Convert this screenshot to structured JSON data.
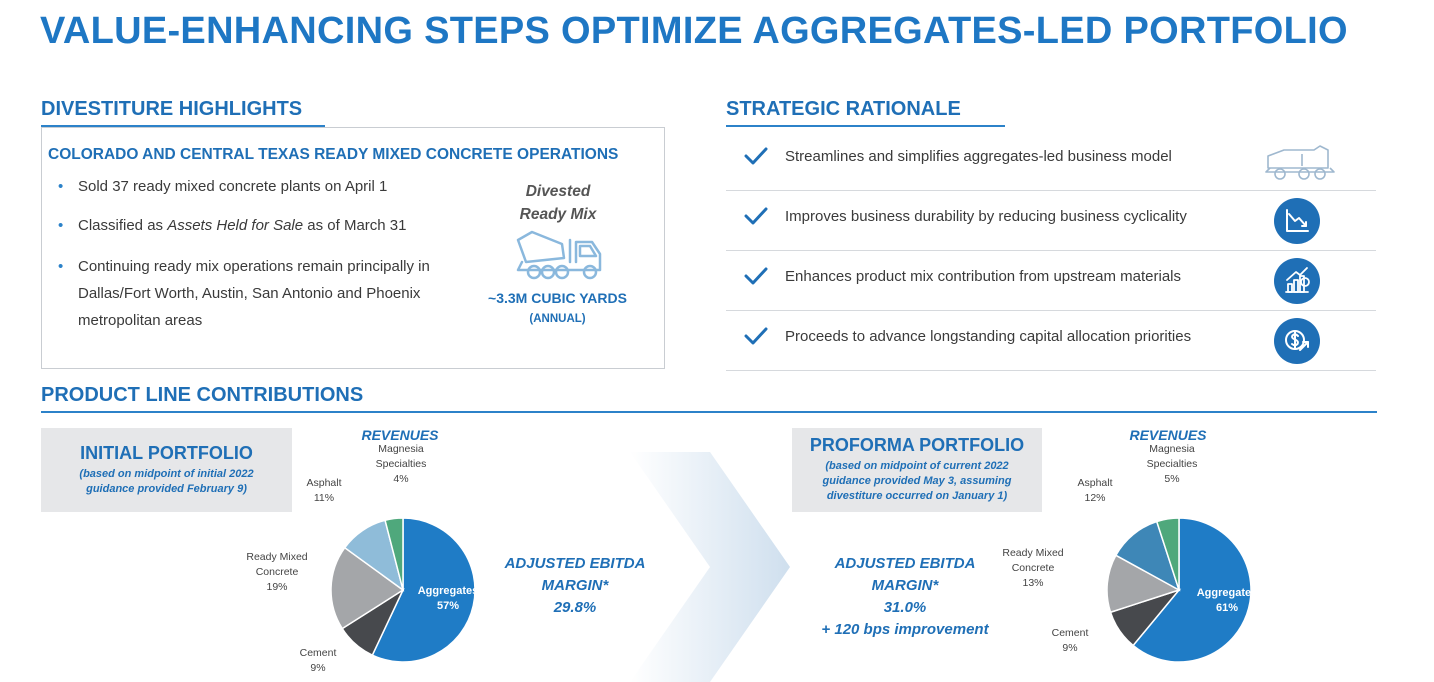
{
  "title": "VALUE-ENHANCING STEPS OPTIMIZE AGGREGATES-LED PORTFOLIO",
  "divestiture": {
    "heading": "DIVESTITURE HIGHLIGHTS",
    "subheading": "COLORADO AND CENTRAL TEXAS READY MIXED CONCRETE OPERATIONS",
    "bullet_symbol": "•",
    "bullets": [
      {
        "pre": "Sold 37 ready mixed concrete plants on April 1",
        "em": "",
        "post": ""
      },
      {
        "pre": "Classified as ",
        "em": "Assets Held for Sale",
        "post": " as of March 31"
      },
      {
        "pre": "Continuing ready mix operations remain principally in Dallas/Fort Worth, Austin, San Antonio and Phoenix metropolitan areas",
        "em": "",
        "post": ""
      }
    ],
    "divested_line1": "Divested",
    "divested_line2": "Ready Mix",
    "volume": "~3.3M CUBIC YARDS",
    "volume_note": "(ANNUAL)"
  },
  "rationale": {
    "heading": "STRATEGIC RATIONALE",
    "items": [
      {
        "text": "Streamlines and simplifies aggregates-led business model",
        "icon": "truck-outline-icon"
      },
      {
        "text": "Improves business durability by reducing business cyclicality",
        "icon": "declining-chart-icon"
      },
      {
        "text": "Enhances product mix contribution from upstream materials",
        "icon": "growth-chart-icon"
      },
      {
        "text": "Proceeds to advance longstanding capital allocation priorities",
        "icon": "dollar-arrow-icon"
      }
    ]
  },
  "product_line": {
    "heading": "PRODUCT LINE CONTRIBUTIONS",
    "initial": {
      "title": "INITIAL PORTFOLIO",
      "note_line1": "(based on midpoint of initial 2022",
      "note_line2": "guidance provided February 9)",
      "revenues_label": "REVENUES",
      "ebitda_line1": "ADJUSTED EBITDA",
      "ebitda_line2": "MARGIN*",
      "ebitda_value": "29.8%"
    },
    "proforma": {
      "title": "PROFORMA PORTFOLIO",
      "note_line1": "(based on midpoint of current 2022",
      "note_line2": "guidance provided May 3, assuming",
      "note_line3": "divestiture occurred on January 1)",
      "revenues_label": "REVENUES",
      "ebitda_line1": "ADJUSTED EBITDA",
      "ebitda_line2": "MARGIN*",
      "ebitda_value": "31.0%",
      "ebitda_improvement": "+ 120 bps improvement"
    }
  },
  "chart_data": [
    {
      "type": "pie",
      "title": "REVENUES",
      "categories": [
        "Aggregates",
        "Cement",
        "Ready Mixed Concrete",
        "Asphalt",
        "Magnesia Specialties"
      ],
      "values": [
        57,
        9,
        19,
        11,
        4
      ],
      "labels": [
        {
          "lines": [
            "Aggregates",
            "57%"
          ]
        },
        {
          "lines": [
            "Cement",
            "9%"
          ]
        },
        {
          "lines": [
            "Ready Mixed",
            "Concrete",
            "19%"
          ]
        },
        {
          "lines": [
            "Asphalt",
            "11%"
          ]
        },
        {
          "lines": [
            "Magnesia",
            "Specialties",
            "4%"
          ]
        }
      ],
      "colors": [
        "#1f7cc6",
        "#47494d",
        "#a4a6a9",
        "#8fbcd9",
        "#4fa87c"
      ]
    },
    {
      "type": "pie",
      "title": "REVENUES",
      "categories": [
        "Aggregates",
        "Cement",
        "Ready Mixed Concrete",
        "Asphalt",
        "Magnesia Specialties"
      ],
      "values": [
        61,
        9,
        13,
        12,
        5
      ],
      "labels": [
        {
          "lines": [
            "Aggregates",
            "61%"
          ]
        },
        {
          "lines": [
            "Cement",
            "9%"
          ]
        },
        {
          "lines": [
            "Ready Mixed",
            "Concrete",
            "13%"
          ]
        },
        {
          "lines": [
            "Asphalt",
            "12%"
          ]
        },
        {
          "lines": [
            "Magnesia",
            "Specialties",
            "5%"
          ]
        }
      ],
      "colors": [
        "#1f7cc6",
        "#47494d",
        "#a4a6a9",
        "#3e87b7",
        "#4fa87c"
      ]
    }
  ]
}
